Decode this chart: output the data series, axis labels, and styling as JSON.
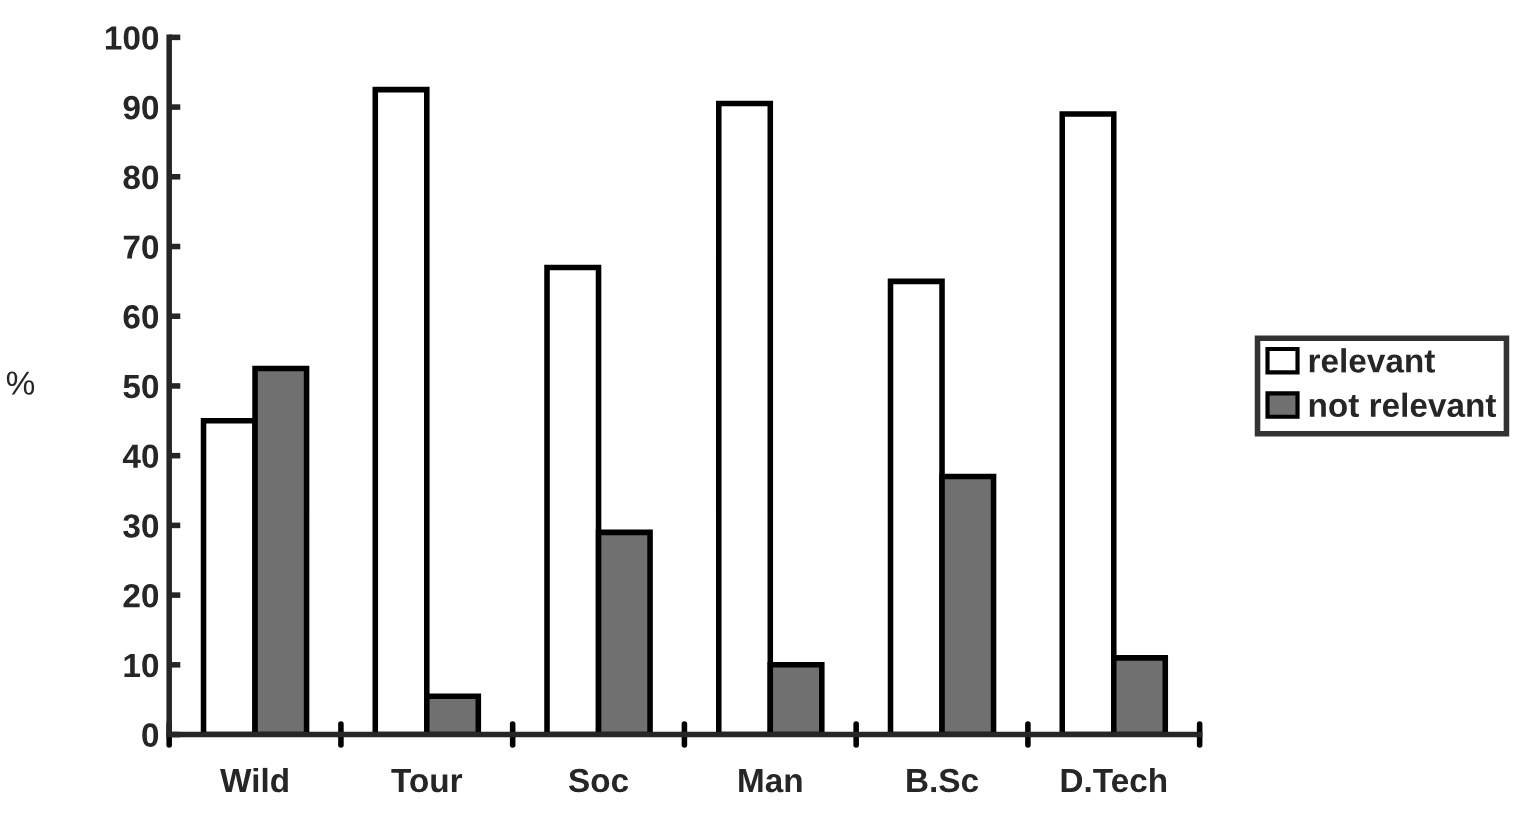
{
  "chart_data": {
    "type": "bar",
    "ylabel": "%",
    "categories": [
      "Wild",
      "Tour",
      "Soc",
      "Man",
      "B.Sc",
      "D.Tech"
    ],
    "series": [
      {
        "name": "relevant",
        "color": "#ffffff",
        "values": [
          45,
          92.5,
          67,
          90.5,
          65,
          89
        ]
      },
      {
        "name": "not relevant",
        "color": "#707070",
        "values": [
          52.5,
          5.5,
          29,
          10,
          37,
          11
        ]
      }
    ],
    "ylim": [
      0,
      100
    ],
    "yticks": [
      0,
      10,
      20,
      30,
      40,
      50,
      60,
      70,
      80,
      90,
      100
    ],
    "grid": false,
    "legend": "right"
  }
}
